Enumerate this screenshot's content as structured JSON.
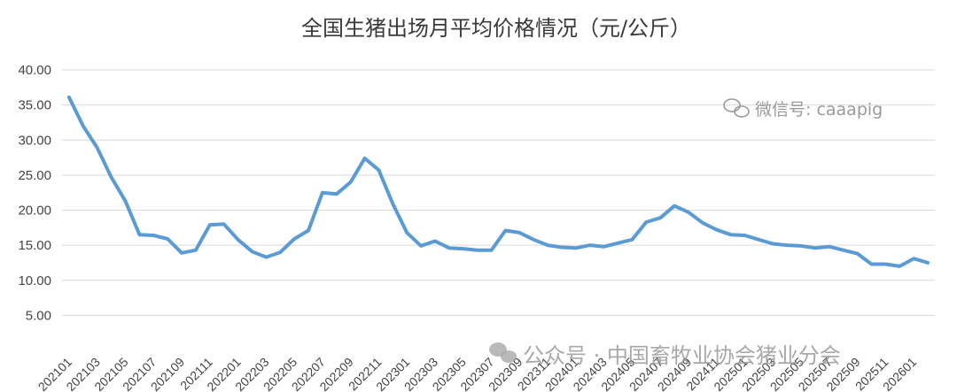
{
  "chart_data": {
    "type": "line",
    "title": "全国生猪出场月平均价格情况（元/公斤）",
    "y_ticks": [
      "5.00",
      "10.00",
      "15.00",
      "20.00",
      "25.00",
      "30.00",
      "35.00",
      "40.00"
    ],
    "ylim": [
      0,
      40
    ],
    "grid": true,
    "x": [
      "202101",
      "202102",
      "202103",
      "202104",
      "202105",
      "202106",
      "202107",
      "202108",
      "202109",
      "202110",
      "202111",
      "202112",
      "202201",
      "202202",
      "202203",
      "202204",
      "202205",
      "202206",
      "202207",
      "202208",
      "202209",
      "202210",
      "202211",
      "202212",
      "202301",
      "202302",
      "202303",
      "202304",
      "202305",
      "202306",
      "202307",
      "202308",
      "202309",
      "202310",
      "202311",
      "202312",
      "202401",
      "202402",
      "202403",
      "202404",
      "202405",
      "202406",
      "202407",
      "202408",
      "202409",
      "202410",
      "202411",
      "202412",
      "202501",
      "202502",
      "202503",
      "202504",
      "202505",
      "202506",
      "202507",
      "202508",
      "202509",
      "202510",
      "202511",
      "202512",
      "202601",
      "202602"
    ],
    "x_tick_labels": [
      "202101",
      "202103",
      "202105",
      "202107",
      "202109",
      "202111",
      "202201",
      "202203",
      "202205",
      "202207",
      "202209",
      "202211",
      "202301",
      "202303",
      "202305",
      "202307",
      "202309",
      "202311",
      "202401",
      "202403",
      "202405",
      "202407",
      "202409",
      "202411",
      "202501",
      "202503",
      "202505",
      "202507",
      "202509",
      "202511",
      "202601"
    ],
    "series": [
      {
        "color": "#5b9bd5",
        "values": [
          36.1,
          32.0,
          28.9,
          24.7,
          21.3,
          16.5,
          16.4,
          15.9,
          13.9,
          14.3,
          17.9,
          18.0,
          15.8,
          14.1,
          13.3,
          14.0,
          15.9,
          17.1,
          22.5,
          22.3,
          24.0,
          27.4,
          25.7,
          20.9,
          16.8,
          14.9,
          15.6,
          14.6,
          14.5,
          14.3,
          14.3,
          17.1,
          16.8,
          15.8,
          15.0,
          14.7,
          14.6,
          15.0,
          14.8,
          15.3,
          15.8,
          18.3,
          18.9,
          20.6,
          19.7,
          18.2,
          17.2,
          16.5,
          16.4,
          15.8,
          15.2,
          15.0,
          14.9,
          14.6,
          14.8,
          14.3,
          13.8,
          12.3,
          12.3,
          12.0,
          13.1,
          12.5
        ]
      }
    ]
  },
  "watermarks": {
    "top": "微信号: caaapig",
    "bottom": "公众号 · 中国畜牧业协会猪业分会",
    "top_icon": "wechat-icon",
    "bottom_icon": "wechat-icon"
  }
}
